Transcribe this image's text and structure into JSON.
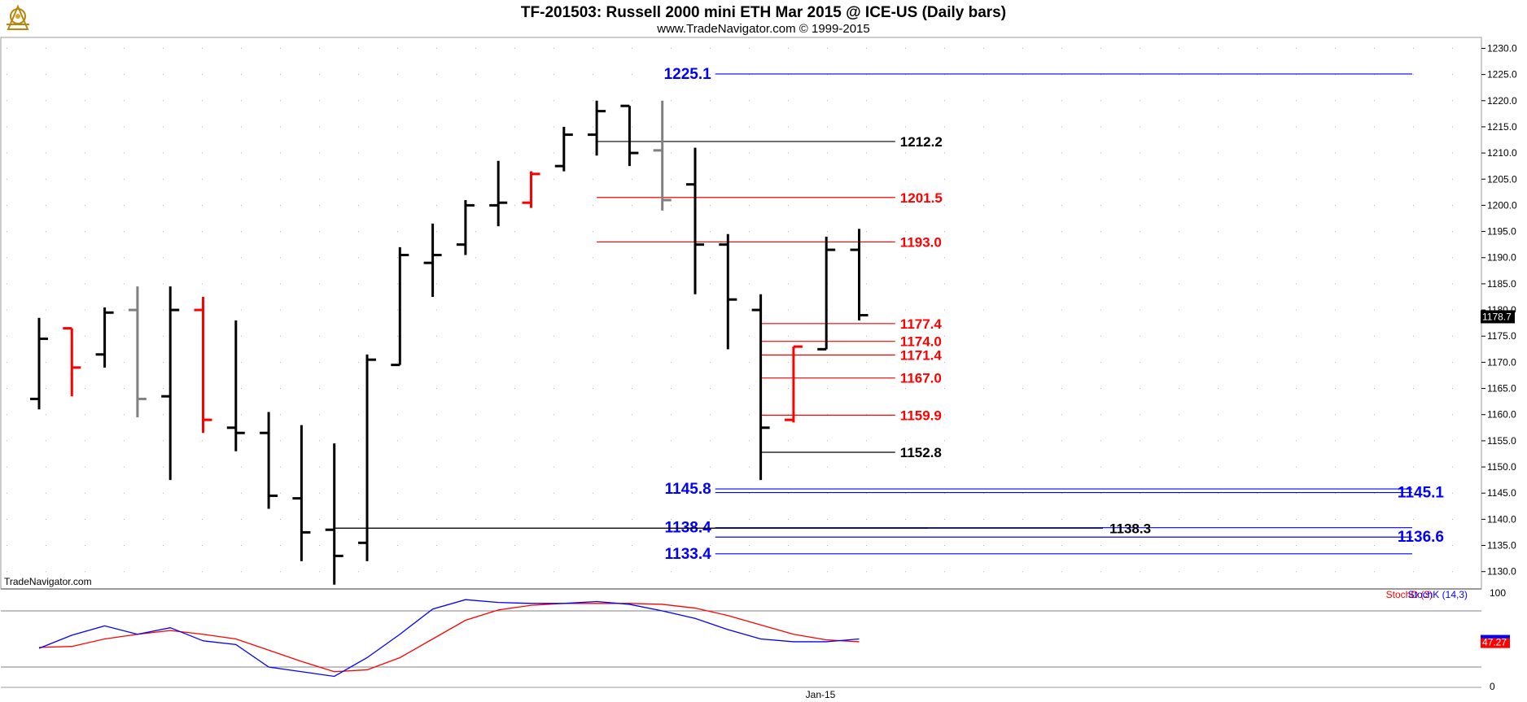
{
  "header": {
    "title": "TF-201503:  Russell 2000 mini ETH Mar 2015 @ ICE-US  (Daily bars)",
    "subtitle": "www.TradeNavigator.com © 1999-2015",
    "logo_icon": "sextant-logo-icon"
  },
  "watermark": "TradeNavigator.com",
  "colors": {
    "up": "#000000",
    "down": "#ff0000",
    "neutral": "#808080",
    "blue": "#0000ff",
    "red": "#ff0000",
    "black": "#000000",
    "stochD": "#ff0000",
    "stochK": "#0000ff"
  },
  "chart_data": [
    {
      "type": "ohlc",
      "title": "TF-201503:  Russell 2000 mini ETH Mar 2015 @ ICE-US  (Daily bars)",
      "ylim": [
        1127,
        1231
      ],
      "y_ticks": [
        "1130.0",
        "1135.0",
        "1140.0",
        "1145.0",
        "1150.0",
        "1155.0",
        "1160.0",
        "1165.0",
        "1170.0",
        "1175.0",
        "1180.0",
        "1185.0",
        "1190.0",
        "1195.0",
        "1200.0",
        "1205.0",
        "1210.0",
        "1215.0",
        "1220.0",
        "1225.0",
        "1230.0"
      ],
      "x_ticks": [
        "Jan-15"
      ],
      "last_price_label": "1178.7",
      "bars": [
        {
          "o": 1163.0,
          "h": 1178.5,
          "l": 1161.0,
          "c": 1174.5,
          "color": "up"
        },
        {
          "o": 1176.5,
          "h": 1176.5,
          "l": 1163.5,
          "c": 1169.0,
          "color": "down"
        },
        {
          "o": 1171.5,
          "h": 1180.5,
          "l": 1169.0,
          "c": 1179.5,
          "color": "up"
        },
        {
          "o": 1180.0,
          "h": 1184.5,
          "l": 1159.5,
          "c": 1163.0,
          "color": "neutral"
        },
        {
          "o": 1163.5,
          "h": 1184.5,
          "l": 1147.5,
          "c": 1180.0,
          "color": "up"
        },
        {
          "o": 1180.0,
          "h": 1182.5,
          "l": 1156.5,
          "c": 1159.0,
          "color": "down"
        },
        {
          "o": 1157.5,
          "h": 1178.0,
          "l": 1153.0,
          "c": 1156.5,
          "color": "up"
        },
        {
          "o": 1156.5,
          "h": 1160.5,
          "l": 1142.0,
          "c": 1144.5,
          "color": "up"
        },
        {
          "o": 1144.0,
          "h": 1158.0,
          "l": 1132.0,
          "c": 1137.5,
          "color": "up"
        },
        {
          "o": 1138.0,
          "h": 1154.5,
          "l": 1127.5,
          "c": 1133.0,
          "color": "up"
        },
        {
          "o": 1135.5,
          "h": 1171.5,
          "l": 1132.0,
          "c": 1170.5,
          "color": "up"
        },
        {
          "o": 1169.5,
          "h": 1192.0,
          "l": 1169.5,
          "c": 1190.5,
          "color": "up"
        },
        {
          "o": 1189.0,
          "h": 1196.5,
          "l": 1182.5,
          "c": 1190.5,
          "color": "up"
        },
        {
          "o": 1192.5,
          "h": 1201.0,
          "l": 1190.5,
          "c": 1200.0,
          "color": "up"
        },
        {
          "o": 1200.0,
          "h": 1208.5,
          "l": 1196.0,
          "c": 1200.5,
          "color": "up"
        },
        {
          "o": 1200.5,
          "h": 1206.5,
          "l": 1199.5,
          "c": 1206.0,
          "color": "down"
        },
        {
          "o": 1207.5,
          "h": 1215.0,
          "l": 1206.5,
          "c": 1213.5,
          "color": "up"
        },
        {
          "o": 1213.5,
          "h": 1220.0,
          "l": 1209.5,
          "c": 1218.0,
          "color": "up"
        },
        {
          "o": 1219.0,
          "h": 1219.0,
          "l": 1207.5,
          "c": 1210.0,
          "color": "up"
        },
        {
          "o": 1210.5,
          "h": 1220.0,
          "l": 1199.0,
          "c": 1201.0,
          "color": "neutral"
        },
        {
          "o": 1204.0,
          "h": 1211.0,
          "l": 1183.0,
          "c": 1192.5,
          "color": "up"
        },
        {
          "o": 1192.5,
          "h": 1194.5,
          "l": 1172.5,
          "c": 1182.0,
          "color": "up"
        },
        {
          "o": 1180.0,
          "h": 1183.0,
          "l": 1147.5,
          "c": 1157.5,
          "color": "up"
        },
        {
          "o": 1159.0,
          "h": 1173.0,
          "l": 1158.5,
          "c": 1173.0,
          "color": "down"
        },
        {
          "o": 1172.5,
          "h": 1194.0,
          "l": 1172.5,
          "c": 1191.5,
          "color": "up"
        },
        {
          "o": 1191.5,
          "h": 1195.5,
          "l": 1178.0,
          "c": 1179.0,
          "color": "up"
        }
      ],
      "levels": [
        {
          "value": 1225.1,
          "label": "1225.1",
          "color": "blue",
          "from_bar": 19,
          "to_bar": 36,
          "label_side": "left",
          "big": true
        },
        {
          "value": 1212.2,
          "label": "1212.2",
          "color": "black",
          "from_bar": 17,
          "to_bar": 26,
          "label_side": "right",
          "big": false
        },
        {
          "value": 1201.5,
          "label": "1201.5",
          "color": "red",
          "from_bar": 17,
          "to_bar": 26,
          "label_side": "right",
          "big": false
        },
        {
          "value": 1193.0,
          "label": "1193.0",
          "color": "red",
          "from_bar": 17,
          "to_bar": 26,
          "label_side": "right",
          "big": false
        },
        {
          "value": 1177.4,
          "label": "1177.4",
          "color": "red",
          "from_bar": 22,
          "to_bar": 26,
          "label_side": "right",
          "big": false
        },
        {
          "value": 1174.0,
          "label": "1174.0",
          "color": "red",
          "from_bar": 22,
          "to_bar": 26,
          "label_side": "right",
          "big": false
        },
        {
          "value": 1171.4,
          "label": "1171.4",
          "color": "red",
          "from_bar": 22,
          "to_bar": 26,
          "label_side": "right",
          "big": false
        },
        {
          "value": 1167.0,
          "label": "1167.0",
          "color": "red",
          "from_bar": 22,
          "to_bar": 26,
          "label_side": "right",
          "big": false
        },
        {
          "value": 1159.9,
          "label": "1159.9",
          "color": "red",
          "from_bar": 22,
          "to_bar": 26,
          "label_side": "right",
          "big": false
        },
        {
          "value": 1152.8,
          "label": "1152.8",
          "color": "black",
          "from_bar": 22,
          "to_bar": 26,
          "label_side": "right",
          "big": false
        },
        {
          "value": 1145.8,
          "label": "1145.8",
          "color": "blue",
          "from_bar": 19,
          "to_bar": 36,
          "label_side": "left",
          "big": true
        },
        {
          "value": 1145.1,
          "label": "1145.1",
          "color": "blue",
          "from_bar": 19,
          "to_bar": 36,
          "label_side": "right",
          "big": true
        },
        {
          "value": 1138.4,
          "label": "1138.4",
          "color": "blue",
          "from_bar": 19,
          "to_bar": 36,
          "label_side": "left",
          "big": true
        },
        {
          "value": 1138.3,
          "label": "1138.3",
          "color": "black",
          "from_bar": 9,
          "to_bar": 27,
          "label_side": "right",
          "big": false
        },
        {
          "value": 1136.6,
          "label": "1136.6",
          "color": "blue",
          "from_bar": 19,
          "to_bar": 36,
          "label_side": "right",
          "big": true
        },
        {
          "value": 1133.4,
          "label": "1133.4",
          "color": "blue",
          "from_bar": 19,
          "to_bar": 36,
          "label_side": "left",
          "big": true
        }
      ]
    },
    {
      "type": "line",
      "ylim": [
        0,
        100
      ],
      "y_ticks": [
        "0",
        "100"
      ],
      "reference_lines": [
        80,
        20
      ],
      "last_value_label": "47.27",
      "series": [
        {
          "name": "StochD (3)",
          "color": "stochD",
          "values": [
            41,
            42,
            50,
            55,
            59,
            55,
            50,
            38,
            26,
            15,
            17,
            30,
            50,
            70,
            81,
            86,
            88,
            88,
            88,
            87,
            83,
            75,
            65,
            55,
            49,
            47
          ]
        },
        {
          "name": "StochK (14,3)",
          "color": "stochK",
          "values": [
            40,
            54,
            64,
            55,
            62,
            48,
            44,
            20,
            15,
            10,
            30,
            55,
            82,
            92,
            89,
            88,
            88,
            90,
            87,
            80,
            72,
            60,
            50,
            47,
            47,
            50
          ]
        }
      ]
    }
  ]
}
